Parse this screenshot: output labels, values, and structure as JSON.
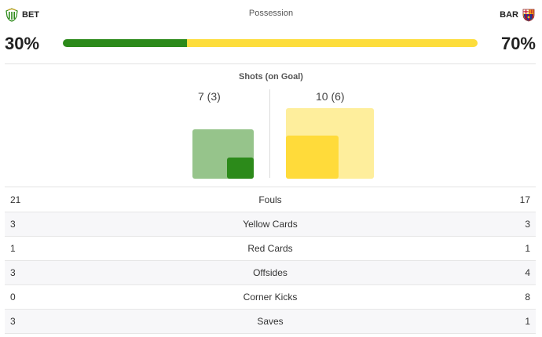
{
  "header": {
    "title": "Possession",
    "home": {
      "abbr": "BET",
      "crest_icon": "betis-crest-icon",
      "color": "#2c8a1a",
      "possession_label": "30%",
      "possession_value": 30
    },
    "away": {
      "abbr": "BAR",
      "crest_icon": "barcelona-crest-icon",
      "color": "#fddd3b",
      "possession_label": "70%",
      "possession_value": 70
    }
  },
  "shots": {
    "title": "Shots (on Goal)",
    "home": {
      "label": "7 (3)",
      "total": 7,
      "on_goal": 3
    },
    "away": {
      "label": "10 (6)",
      "total": 10,
      "on_goal": 6
    }
  },
  "stats": [
    {
      "label": "Fouls",
      "home": "21",
      "away": "17"
    },
    {
      "label": "Yellow Cards",
      "home": "3",
      "away": "3"
    },
    {
      "label": "Red Cards",
      "home": "1",
      "away": "1"
    },
    {
      "label": "Offsides",
      "home": "3",
      "away": "4"
    },
    {
      "label": "Corner Kicks",
      "home": "0",
      "away": "8"
    },
    {
      "label": "Saves",
      "home": "3",
      "away": "1"
    }
  ]
}
